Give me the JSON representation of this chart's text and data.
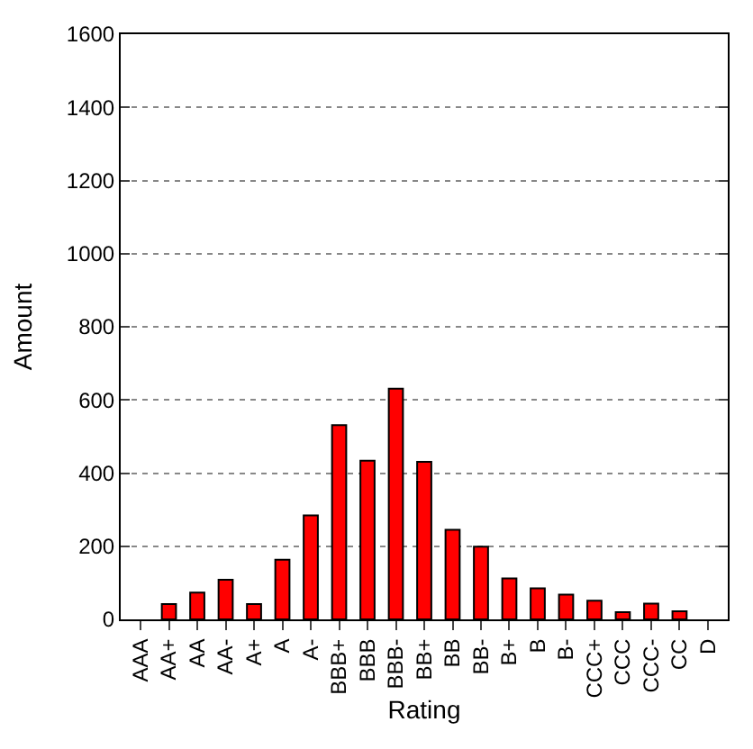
{
  "chart_data": {
    "type": "bar",
    "xlabel": "Rating",
    "ylabel": "Amount",
    "categories": [
      "AAA",
      "AA+",
      "AA",
      "AA-",
      "A+",
      "A",
      "A-",
      "BBB+",
      "BBB",
      "BBB-",
      "BB+",
      "BB",
      "BB-",
      "B+",
      "B",
      "B-",
      "CCC+",
      "CCC",
      "CCC-",
      "CC",
      "D"
    ],
    "values": [
      0,
      42,
      73,
      108,
      42,
      163,
      284,
      531,
      434,
      631,
      431,
      245,
      199,
      112,
      85,
      68,
      51,
      20,
      43,
      22,
      0
    ],
    "color": "#ff0000",
    "ylim": [
      0,
      1600
    ],
    "yticks": [
      0,
      200,
      400,
      600,
      800,
      1000,
      1200,
      1400,
      1600
    ],
    "grid": "y"
  }
}
